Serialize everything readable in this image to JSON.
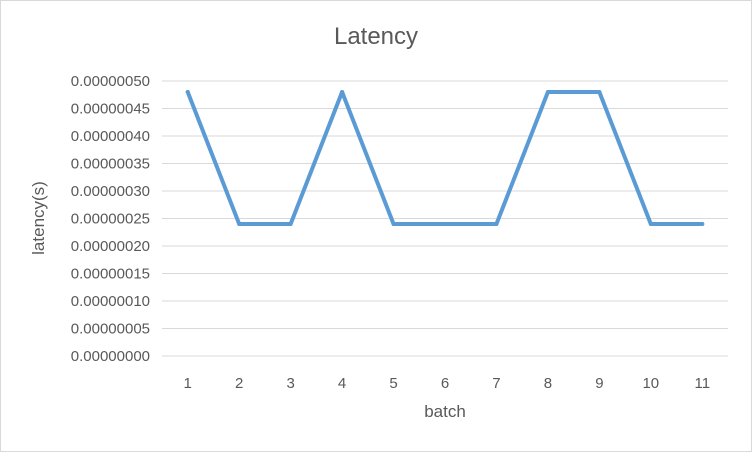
{
  "chart_data": {
    "type": "line",
    "title": "Latency",
    "xlabel": "batch",
    "ylabel": "latency(s)",
    "categories": [
      "1",
      "2",
      "3",
      "4",
      "5",
      "6",
      "7",
      "8",
      "9",
      "10",
      "11"
    ],
    "series": [
      {
        "name": "",
        "values": [
          4.8e-07,
          2.4e-07,
          2.4e-07,
          4.8e-07,
          2.4e-07,
          2.4e-07,
          2.4e-07,
          4.8e-07,
          4.8e-07,
          2.4e-07,
          2.4e-07
        ],
        "color": "#5b9bd5"
      }
    ],
    "ylim": [
      0,
      5e-07
    ],
    "yticks": [
      {
        "value": 0,
        "label": "0.00000000"
      },
      {
        "value": 5e-08,
        "label": "0.00000005"
      },
      {
        "value": 1e-07,
        "label": "0.00000010"
      },
      {
        "value": 1.5e-07,
        "label": "0.00000015"
      },
      {
        "value": 2e-07,
        "label": "0.00000020"
      },
      {
        "value": 2.5e-07,
        "label": "0.00000025"
      },
      {
        "value": 3e-07,
        "label": "0.00000030"
      },
      {
        "value": 3.5e-07,
        "label": "0.00000035"
      },
      {
        "value": 4e-07,
        "label": "0.00000040"
      },
      {
        "value": 4.5e-07,
        "label": "0.00000045"
      },
      {
        "value": 5e-07,
        "label": "0.00000050"
      }
    ],
    "grid": true,
    "legend": "none"
  }
}
